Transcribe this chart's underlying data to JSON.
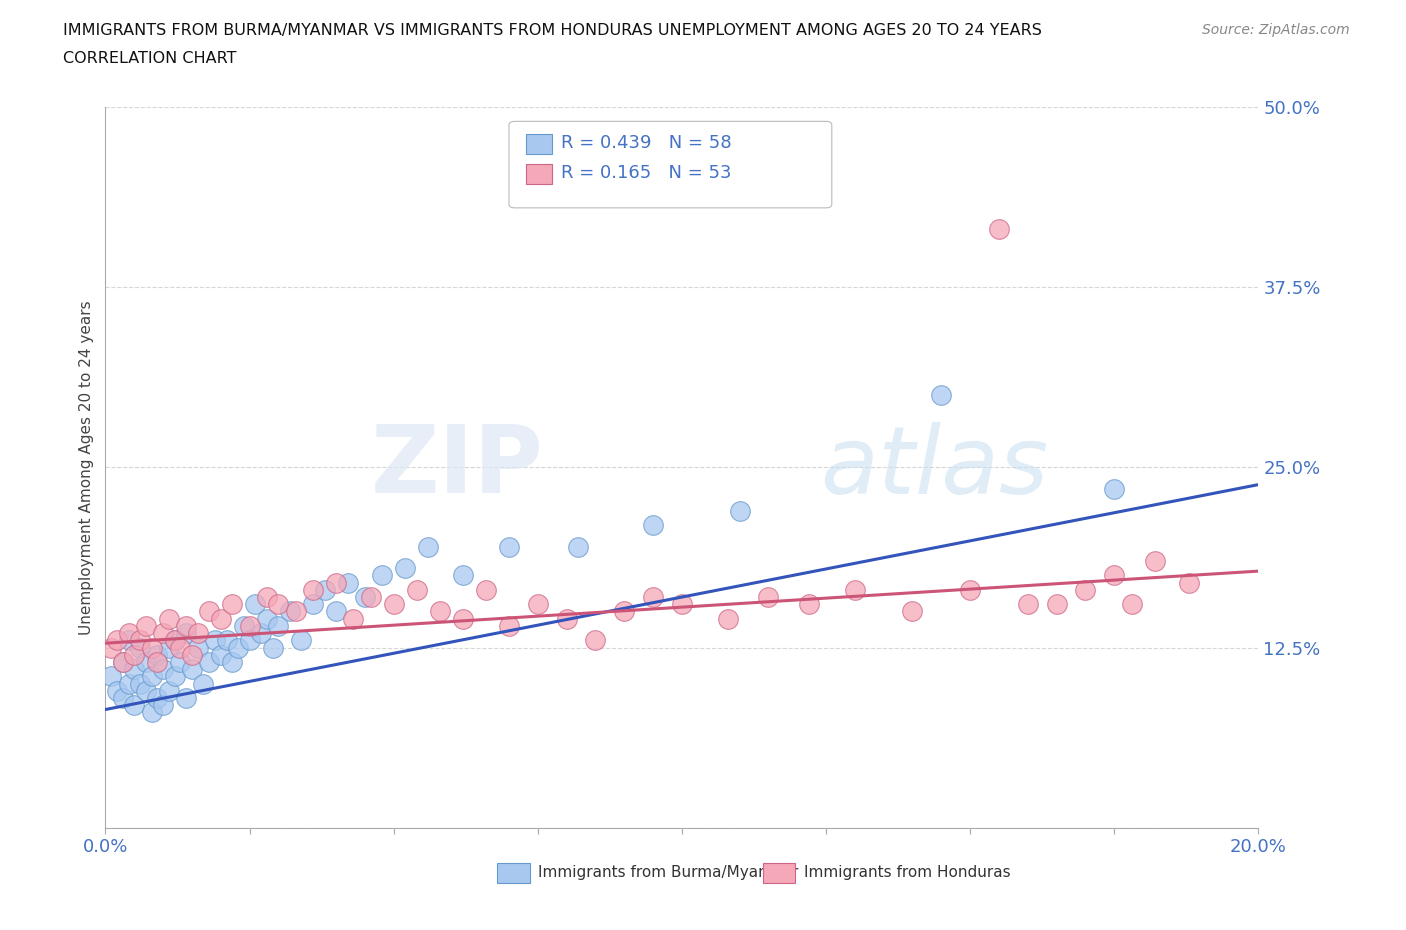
{
  "title_line1": "IMMIGRANTS FROM BURMA/MYANMAR VS IMMIGRANTS FROM HONDURAS UNEMPLOYMENT AMONG AGES 20 TO 24 YEARS",
  "title_line2": "CORRELATION CHART",
  "source": "Source: ZipAtlas.com",
  "ylabel": "Unemployment Among Ages 20 to 24 years",
  "xlim": [
    0.0,
    0.2
  ],
  "ylim": [
    0.0,
    0.5
  ],
  "ytick_vals": [
    0.0,
    0.125,
    0.25,
    0.375,
    0.5
  ],
  "ytick_labels": [
    "",
    "12.5%",
    "25.0%",
    "37.5%",
    "50.0%"
  ],
  "xtick_vals": [
    0.0,
    0.025,
    0.05,
    0.075,
    0.1,
    0.125,
    0.15,
    0.175,
    0.2
  ],
  "xtick_labels": [
    "0.0%",
    "",
    "",
    "",
    "",
    "",
    "",
    "",
    "20.0%"
  ],
  "series1_color": "#a8c8f0",
  "series1_edge": "#6699cc",
  "series2_color": "#f5a8b8",
  "series2_edge": "#cc6688",
  "line1_color": "#3355bb",
  "line2_color": "#cc5577",
  "legend_label1": "Immigrants from Burma/Myanmar",
  "legend_label2": "Immigrants from Honduras",
  "R1": 0.439,
  "N1": 58,
  "R2": 0.165,
  "N2": 53,
  "line1_y0": 0.082,
  "line1_y1": 0.238,
  "line2_y0": 0.128,
  "line2_y1": 0.178
}
